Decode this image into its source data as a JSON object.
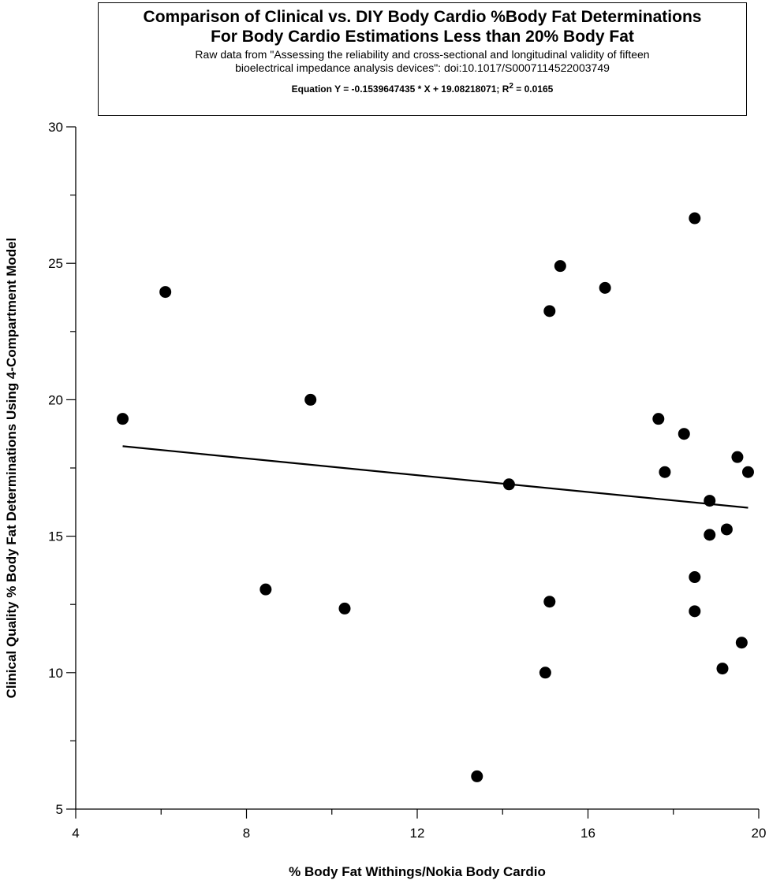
{
  "chart_data": {
    "type": "scatter",
    "title": "Comparison of Clinical vs. DIY Body Cardio %Body Fat Determinations",
    "title_line2": "For Body Cardio Estimations Less than 20% Body Fat",
    "subtitle_line1": "Raw data from \"Assessing the reliability and cross-sectional and longitudinal validity of fifteen",
    "subtitle_line2": "bioelectrical impedance analysis devices\":  doi:10.1017/S0007114522003749",
    "equation_text": "Equation Y = -0.1539647435 * X + 19.08218071; R",
    "equation_sup": "2",
    "equation_tail": " = 0.0165",
    "xlabel": "% Body Fat Withings/Nokia Body Cardio",
    "ylabel": "Clinical Quality % Body Fat Determinations Using 4-Compartment Model",
    "xlim": [
      4,
      20
    ],
    "ylim": [
      5,
      30
    ],
    "x_ticks": [
      4,
      8,
      12,
      16,
      20
    ],
    "y_ticks": [
      5,
      10,
      15,
      20,
      25,
      30
    ],
    "grid": false,
    "series": [
      {
        "points": [
          [
            5.1,
            19.3
          ],
          [
            6.1,
            23.95
          ],
          [
            8.45,
            13.05
          ],
          [
            9.5,
            20.0
          ],
          [
            10.3,
            12.35
          ],
          [
            13.4,
            6.2
          ],
          [
            14.15,
            16.9
          ],
          [
            15.0,
            10.0
          ],
          [
            15.1,
            23.25
          ],
          [
            15.1,
            12.6
          ],
          [
            15.35,
            24.9
          ],
          [
            16.4,
            24.1
          ],
          [
            17.65,
            19.3
          ],
          [
            17.8,
            17.35
          ],
          [
            18.25,
            18.75
          ],
          [
            18.5,
            26.65
          ],
          [
            18.5,
            13.5
          ],
          [
            18.5,
            12.25
          ],
          [
            18.85,
            16.3
          ],
          [
            18.85,
            15.05
          ],
          [
            19.15,
            10.15
          ],
          [
            19.25,
            15.25
          ],
          [
            19.5,
            17.9
          ],
          [
            19.6,
            11.1
          ],
          [
            19.75,
            17.35
          ]
        ]
      }
    ],
    "fit_line": {
      "slope": -0.1539647435,
      "intercept": 19.08218071,
      "x_range": [
        5.1,
        19.75
      ]
    }
  }
}
